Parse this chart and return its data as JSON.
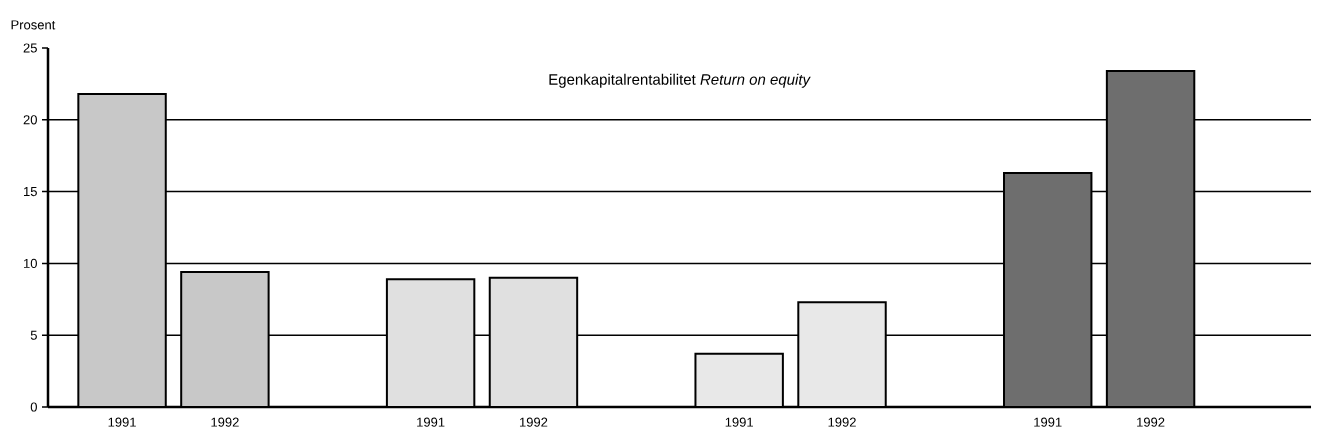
{
  "chart_data": {
    "type": "bar",
    "title": "Egenkapitalrentabilitet  *Return on equity*",
    "ylabel": "Prosent",
    "categories": [
      "1991",
      "1992",
      null,
      "1991",
      "1992",
      null,
      "1991",
      "1992",
      null,
      "1991",
      "1992"
    ],
    "values": [
      21.8,
      9.4,
      null,
      8.9,
      9.0,
      null,
      3.7,
      7.3,
      null,
      16.3,
      23.4
    ],
    "colors": [
      "#c8c8c8",
      "#c8c8c8",
      "#ffffff",
      "#e0e0e0",
      "#e0e0e0",
      "#ffffff",
      "#e8e8e8",
      "#e8e8e8",
      "#ffffff",
      "#6e6e6e",
      "#6e6e6e"
    ],
    "ylim": [
      0,
      25
    ],
    "yticks": [
      0,
      5,
      10,
      15,
      20,
      25
    ],
    "grid": "y"
  }
}
